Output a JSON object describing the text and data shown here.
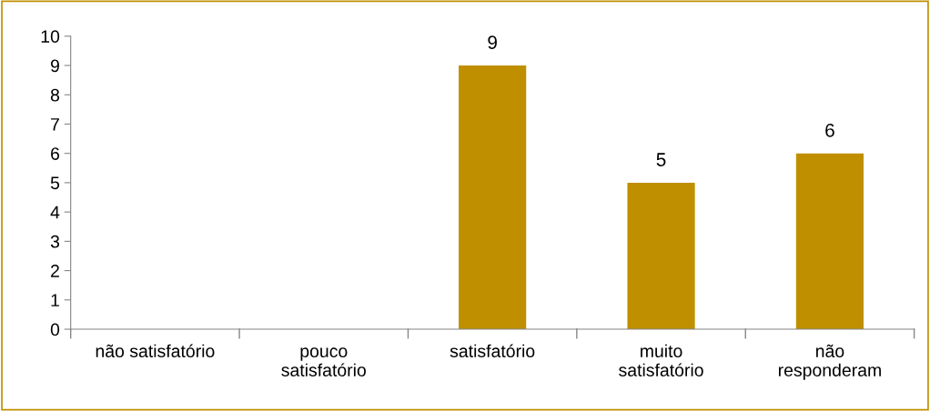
{
  "chart_data": {
    "type": "bar",
    "categories": [
      "não satisfatório",
      "pouco\nsatisfatório",
      "satisfatório",
      "muito\nsatisfatório",
      "não\nresponderam"
    ],
    "values": [
      0,
      0,
      9,
      5,
      6
    ],
    "value_labels": [
      null,
      null,
      "9",
      "5",
      "6"
    ],
    "color": "#bf8f00",
    "ylim": [
      0,
      10
    ],
    "yticks": [
      0,
      1,
      2,
      3,
      4,
      5,
      6,
      7,
      8,
      9,
      10
    ],
    "grid": false,
    "legend": false
  }
}
